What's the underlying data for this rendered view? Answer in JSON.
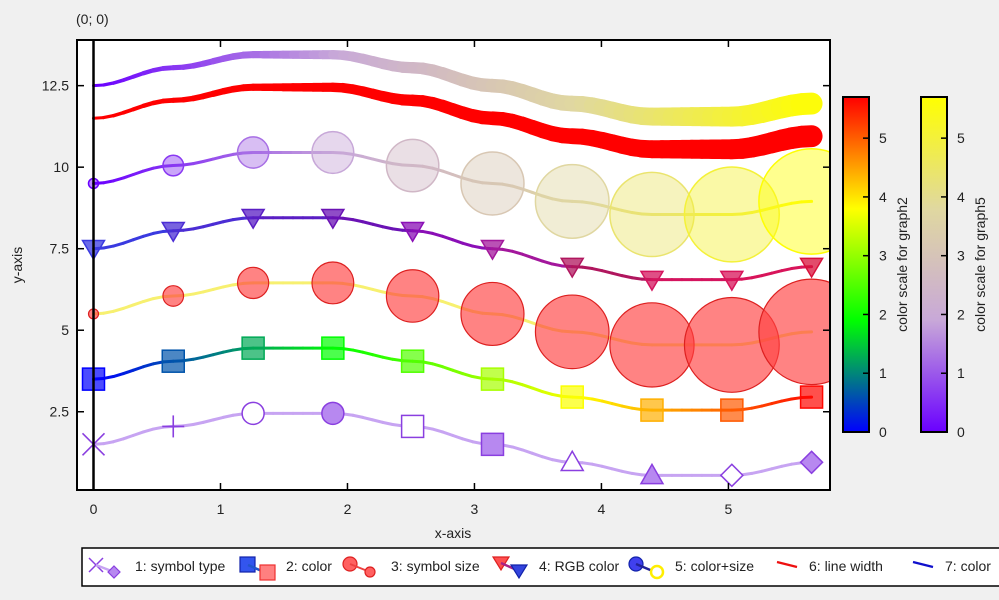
{
  "chart_data": {
    "type": "line",
    "corner_label": "(0; 0)",
    "xlabel": "x-axis",
    "ylabel": "y-axis",
    "xlim": [
      -0.13,
      5.8
    ],
    "ylim": [
      0.1,
      13.9
    ],
    "xticks": [
      {
        "v": 0,
        "label": "0"
      },
      {
        "v": 1,
        "label": "1"
      },
      {
        "v": 2,
        "label": "2"
      },
      {
        "v": 3,
        "label": "3"
      },
      {
        "v": 4,
        "label": "4"
      },
      {
        "v": 5,
        "label": "5"
      }
    ],
    "yticks": [
      {
        "v": 2.5,
        "label": "2.5"
      },
      {
        "v": 5,
        "label": "5"
      },
      {
        "v": 7.5,
        "label": "7.5"
      },
      {
        "v": 10,
        "label": "10"
      },
      {
        "v": 12.5,
        "label": "12.5"
      }
    ],
    "x": [
      0,
      0.628,
      1.257,
      1.885,
      2.513,
      3.142,
      3.77,
      4.398,
      5.027,
      5.655
    ],
    "series": [
      {
        "name": "1: symbol type",
        "values": [
          1.5,
          2.05,
          2.45,
          2.45,
          2.05,
          1.5,
          0.95,
          0.55,
          0.55,
          0.95
        ],
        "symbols": [
          "x",
          "+",
          "circle-open",
          "circle",
          "square-open",
          "square",
          "triangle-open",
          "triangle",
          "diamond-open",
          "diamond"
        ]
      },
      {
        "name": "2: color",
        "values": [
          3.5,
          4.05,
          4.45,
          4.45,
          4.05,
          3.5,
          2.95,
          2.55,
          2.55,
          2.95
        ]
      },
      {
        "name": "3: symbol size",
        "values": [
          5.5,
          6.05,
          6.45,
          6.45,
          6.05,
          5.5,
          4.95,
          4.55,
          4.55,
          4.95
        ]
      },
      {
        "name": "4: RGB color",
        "values": [
          7.5,
          8.05,
          8.45,
          8.45,
          8.05,
          7.5,
          6.95,
          6.55,
          6.55,
          6.95
        ]
      },
      {
        "name": "5: color+size",
        "values": [
          9.5,
          10.05,
          10.45,
          10.45,
          10.05,
          9.5,
          8.95,
          8.55,
          8.55,
          8.95
        ]
      },
      {
        "name": "6: line width",
        "values": [
          11.5,
          12.05,
          12.45,
          12.45,
          12.05,
          11.5,
          10.95,
          10.55,
          10.55,
          10.95
        ]
      },
      {
        "name": "7: color",
        "values": [
          12.5,
          13.05,
          13.45,
          13.45,
          13.05,
          12.5,
          11.95,
          11.55,
          11.55,
          11.95
        ]
      }
    ],
    "colorbars": [
      {
        "label": "color scale for graph2",
        "ticks": [
          "0",
          "1",
          "2",
          "3",
          "4",
          "5"
        ],
        "range": [
          0,
          5.7
        ],
        "colors": [
          "#0000ff",
          "#00ff00",
          "#ffff00",
          "#ff0000"
        ]
      },
      {
        "label": "color scale for graph5",
        "ticks": [
          "0",
          "1",
          "2",
          "3",
          "4",
          "5"
        ],
        "range": [
          0,
          5.7
        ],
        "colors": [
          "#6a00ff",
          "#c8a8d8",
          "#e0d8a0",
          "#ffff00"
        ]
      }
    ],
    "grid": false,
    "legend_position": "bottom"
  }
}
